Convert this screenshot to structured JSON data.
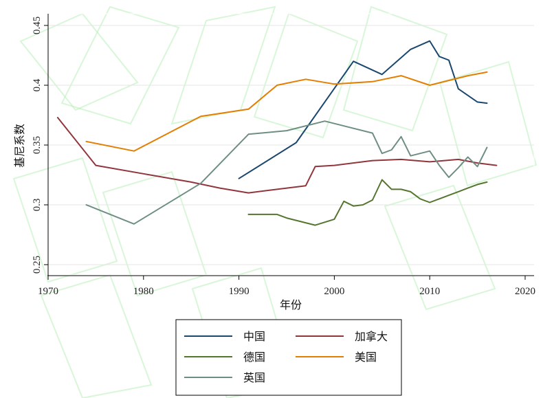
{
  "chart_data": {
    "type": "line",
    "title": "",
    "xlabel": "年份",
    "ylabel": "基尼系数",
    "xlim": [
      1970,
      2020
    ],
    "ylim": [
      0.25,
      0.45
    ],
    "x_ticks": [
      1970,
      1980,
      1990,
      2000,
      2010,
      2020
    ],
    "y_ticks": [
      0.25,
      0.3,
      0.35,
      0.4,
      0.45
    ],
    "y_tick_labels": [
      "0.25",
      "0.3",
      "0.35",
      "0.4",
      "0.45"
    ],
    "grid": true,
    "legend_position": "bottom",
    "series": [
      {
        "name": "中国",
        "color": "#1a476f",
        "x": [
          1990,
          1996,
          2002,
          2005,
          2008,
          2010,
          2011,
          2012,
          2013,
          2015,
          2016
        ],
        "y": [
          0.322,
          0.352,
          0.42,
          0.409,
          0.43,
          0.437,
          0.424,
          0.421,
          0.397,
          0.386,
          0.385
        ]
      },
      {
        "name": "加拿大",
        "color": "#90353b",
        "x": [
          1971,
          1975,
          1980,
          1985,
          1988,
          1991,
          1994,
          1997,
          1998,
          2000,
          2004,
          2007,
          2010,
          2013,
          2015,
          2017
        ],
        "y": [
          0.373,
          0.333,
          0.326,
          0.319,
          0.314,
          0.31,
          0.313,
          0.316,
          0.332,
          0.333,
          0.337,
          0.338,
          0.336,
          0.338,
          0.335,
          0.333
        ]
      },
      {
        "name": "德国",
        "color": "#55752f",
        "x": [
          1991,
          1994,
          1995,
          1998,
          2000,
          2001,
          2002,
          2003,
          2004,
          2005,
          2006,
          2007,
          2008,
          2009,
          2010,
          2011,
          2012,
          2013,
          2014,
          2015,
          2016
        ],
        "y": [
          0.292,
          0.292,
          0.289,
          0.283,
          0.288,
          0.303,
          0.299,
          0.3,
          0.304,
          0.321,
          0.313,
          0.313,
          0.311,
          0.305,
          0.302,
          0.305,
          0.308,
          0.311,
          0.314,
          0.317,
          0.319
        ]
      },
      {
        "name": "美国",
        "color": "#e37e00",
        "x": [
          1974,
          1979,
          1986,
          1991,
          1994,
          1997,
          2000,
          2004,
          2007,
          2010,
          2014,
          2016
        ],
        "y": [
          0.353,
          0.345,
          0.374,
          0.38,
          0.4,
          0.405,
          0.401,
          0.403,
          0.408,
          0.4,
          0.408,
          0.411
        ]
      },
      {
        "name": "英国",
        "color": "#6e8e84",
        "x": [
          1974,
          1979,
          1986,
          1991,
          1995,
          1999,
          2004,
          2005,
          2006,
          2007,
          2008,
          2010,
          2011,
          2012,
          2013,
          2014,
          2015,
          2016
        ],
        "y": [
          0.3,
          0.284,
          0.318,
          0.359,
          0.362,
          0.37,
          0.36,
          0.343,
          0.346,
          0.357,
          0.341,
          0.345,
          0.333,
          0.323,
          0.331,
          0.34,
          0.332,
          0.348
        ]
      }
    ]
  }
}
